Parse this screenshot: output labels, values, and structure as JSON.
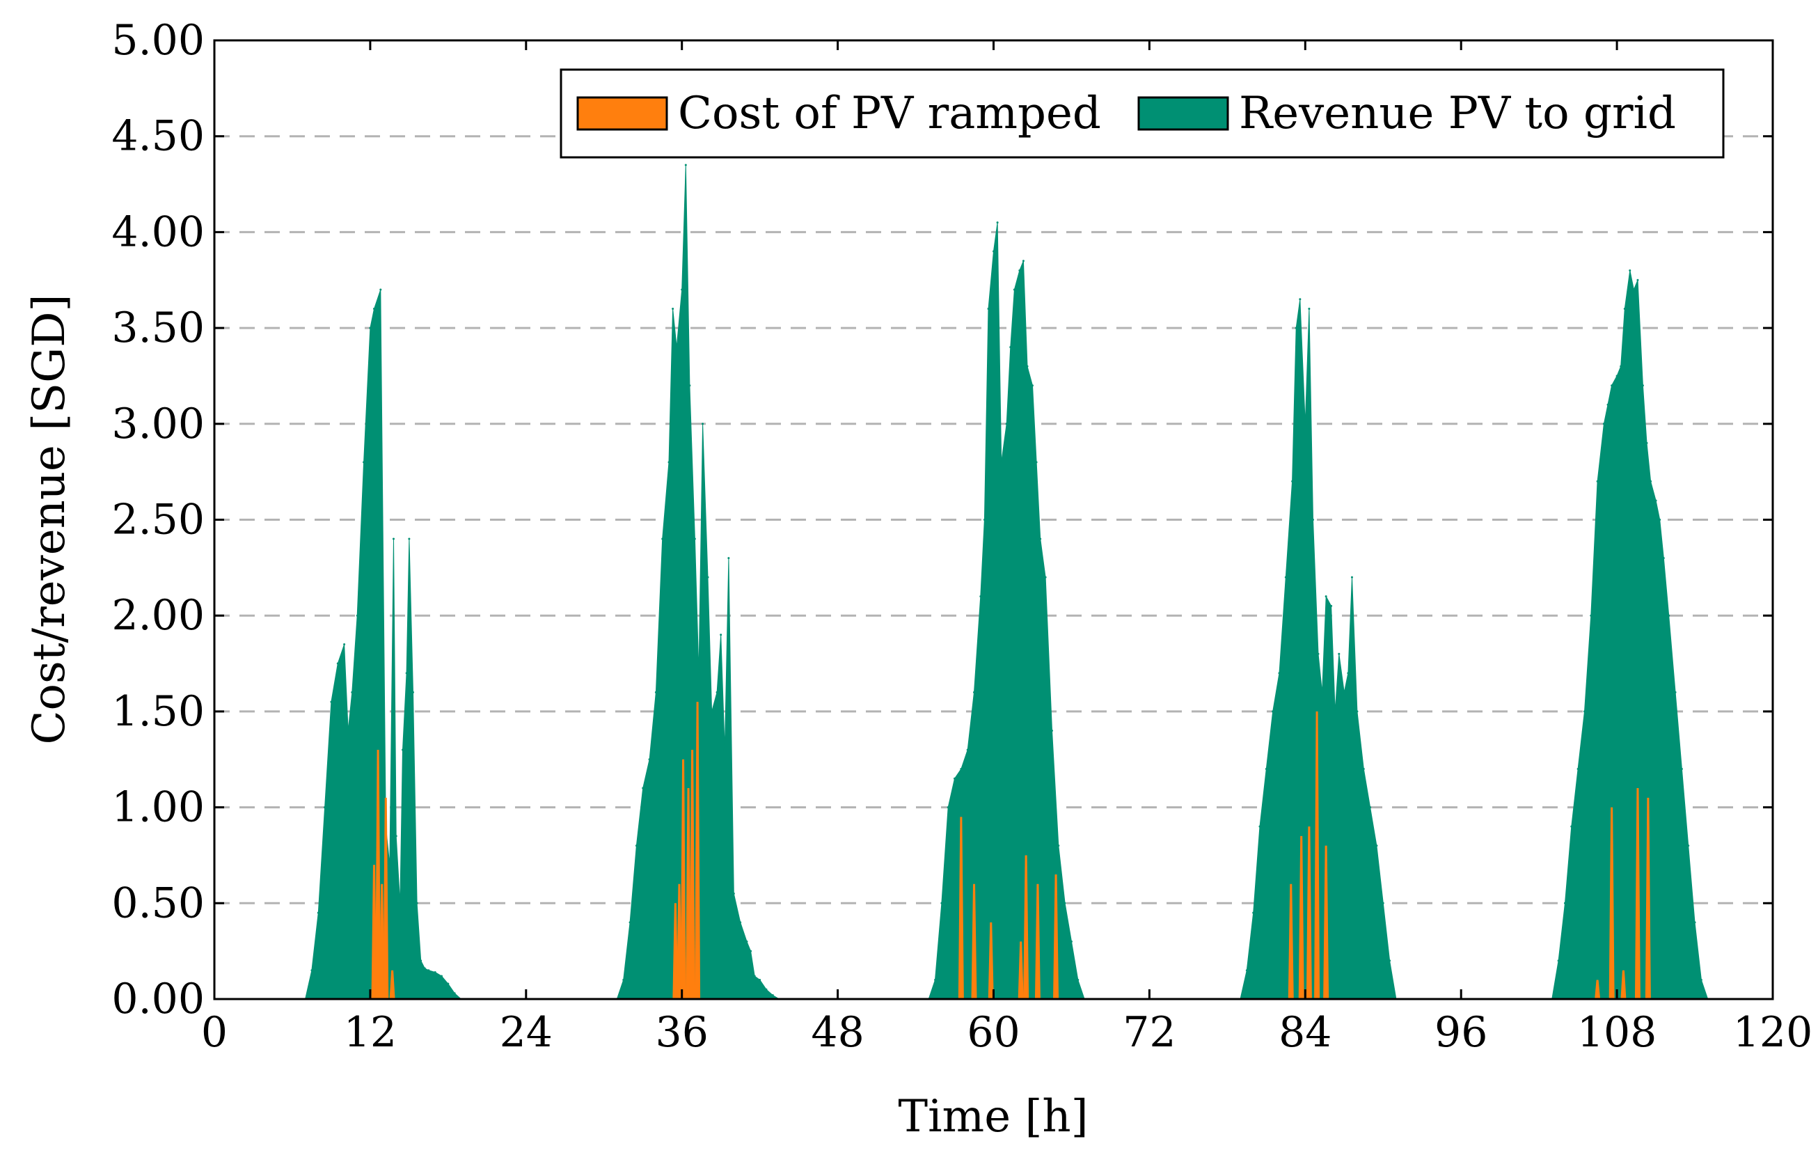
{
  "chart_data": {
    "type": "area",
    "title": "",
    "xlabel": "Time [h]",
    "ylabel": "Cost/revenue [SGD]",
    "xlim": [
      0,
      120
    ],
    "ylim": [
      0,
      5
    ],
    "xticks": [
      0,
      12,
      24,
      36,
      48,
      60,
      72,
      84,
      96,
      108,
      120
    ],
    "xtick_labels": [
      "0",
      "12",
      "24",
      "36",
      "48",
      "60",
      "72",
      "84",
      "96",
      "108",
      "120"
    ],
    "yticks": [
      0,
      0.5,
      1,
      1.5,
      2,
      2.5,
      3,
      3.5,
      4,
      4.5,
      5
    ],
    "ytick_labels": [
      "0.00",
      "0.50",
      "1.00",
      "1.50",
      "2.00",
      "2.50",
      "3.00",
      "3.50",
      "4.00",
      "4.50",
      "5.00"
    ],
    "grid": "horizontal dashed",
    "legend_position": "top-right",
    "colors": {
      "cost": "#ff7f0e",
      "revenue": "#009073"
    },
    "series": [
      {
        "name": "Revenue PV to grid",
        "x": [
          0,
          7,
          7.5,
          8,
          8.5,
          9,
          9.5,
          10,
          10.3,
          10.6,
          11,
          11.5,
          12,
          12.3,
          12.8,
          13.2,
          13.5,
          13.8,
          14,
          14.3,
          14.5,
          14.8,
          15,
          15.3,
          15.6,
          15.9,
          16.2,
          16.5,
          17,
          17.5,
          18,
          18.5,
          19,
          31,
          31.5,
          32,
          32.5,
          33,
          33.5,
          34,
          34.5,
          35,
          35.3,
          35.6,
          36,
          36.3,
          36.6,
          37,
          37.3,
          37.6,
          38,
          38.3,
          38.7,
          39,
          39.3,
          39.6,
          40,
          40.5,
          41,
          41.3,
          41.6,
          42,
          42.5,
          43,
          43.5,
          55,
          55.5,
          56,
          56.5,
          57,
          57.5,
          58,
          58.5,
          59,
          59.3,
          59.6,
          60,
          60.3,
          60.6,
          61,
          61.3,
          61.6,
          62,
          62.3,
          62.6,
          63,
          63.3,
          63.6,
          64,
          64.5,
          65,
          65.5,
          66,
          66.5,
          67,
          79,
          79.5,
          80,
          80.5,
          81,
          81.5,
          82,
          82.5,
          83,
          83.3,
          83.6,
          84,
          84.3,
          84.6,
          85,
          85.3,
          85.6,
          86,
          86.3,
          86.6,
          87,
          87.3,
          87.6,
          88,
          88.5,
          89,
          89.5,
          90,
          90.5,
          91,
          103,
          103.5,
          104,
          104.5,
          105,
          105.5,
          106,
          106.5,
          107,
          107.3,
          107.6,
          108,
          108.3,
          108.6,
          109,
          109.3,
          109.6,
          110,
          110.3,
          110.6,
          111,
          111.3,
          111.6,
          112,
          112.5,
          113,
          113.5,
          114,
          114.5,
          115,
          120
        ],
        "values": [
          0,
          0,
          0.15,
          0.45,
          1.0,
          1.55,
          1.75,
          1.85,
          1.4,
          1.6,
          2.0,
          2.8,
          3.5,
          3.6,
          3.7,
          0.9,
          0.7,
          2.4,
          0.85,
          0.5,
          1.3,
          1.7,
          2.4,
          1.6,
          0.5,
          0.2,
          0.16,
          0.15,
          0.14,
          0.12,
          0.08,
          0.03,
          0,
          0,
          0.1,
          0.4,
          0.8,
          1.1,
          1.25,
          1.6,
          2.4,
          2.8,
          3.6,
          3.4,
          3.7,
          4.35,
          3.2,
          2.4,
          1.7,
          3.0,
          2.2,
          1.5,
          1.6,
          1.9,
          1.3,
          2.3,
          0.55,
          0.4,
          0.3,
          0.25,
          0.12,
          0.1,
          0.05,
          0.02,
          0,
          0,
          0.1,
          0.5,
          1.0,
          1.15,
          1.2,
          1.3,
          1.6,
          2.1,
          2.5,
          3.6,
          3.9,
          4.05,
          2.8,
          3.0,
          3.4,
          3.7,
          3.8,
          3.85,
          3.3,
          3.2,
          2.8,
          2.4,
          2.2,
          1.4,
          0.8,
          0.5,
          0.3,
          0.1,
          0,
          0,
          0.15,
          0.45,
          0.9,
          1.2,
          1.5,
          1.7,
          2.2,
          2.7,
          3.5,
          3.65,
          3.0,
          3.6,
          2.5,
          1.8,
          1.6,
          2.1,
          2.05,
          1.5,
          1.8,
          1.6,
          1.7,
          2.2,
          1.5,
          1.2,
          1.0,
          0.8,
          0.5,
          0.2,
          0,
          0,
          0.2,
          0.5,
          0.9,
          1.2,
          1.5,
          2.0,
          2.7,
          3.0,
          3.1,
          3.2,
          3.25,
          3.3,
          3.6,
          3.8,
          3.7,
          3.75,
          3.2,
          2.9,
          2.7,
          2.6,
          2.5,
          2.3,
          2.0,
          1.6,
          1.2,
          0.8,
          0.4,
          0.1,
          0,
          0
        ]
      },
      {
        "name": "Cost of PV ramped",
        "x": [
          12.3,
          12.6,
          12.9,
          13.2,
          13.7,
          35.5,
          35.8,
          36.1,
          36.5,
          36.8,
          37.2,
          57.5,
          58.5,
          59.8,
          62.1,
          62.5,
          63.4,
          64.8,
          82.9,
          83.7,
          84.3,
          84.9,
          85.6,
          106.5,
          107.6,
          108.5,
          109.6,
          110.4
        ],
        "values": [
          0.7,
          1.3,
          0.6,
          1.05,
          0.15,
          0.5,
          0.6,
          1.25,
          1.1,
          1.3,
          1.55,
          0.95,
          0.6,
          0.4,
          0.3,
          0.75,
          0.6,
          0.65,
          0.6,
          0.85,
          0.9,
          1.5,
          0.8,
          0.1,
          1.0,
          0.15,
          1.1,
          1.05
        ]
      }
    ]
  }
}
